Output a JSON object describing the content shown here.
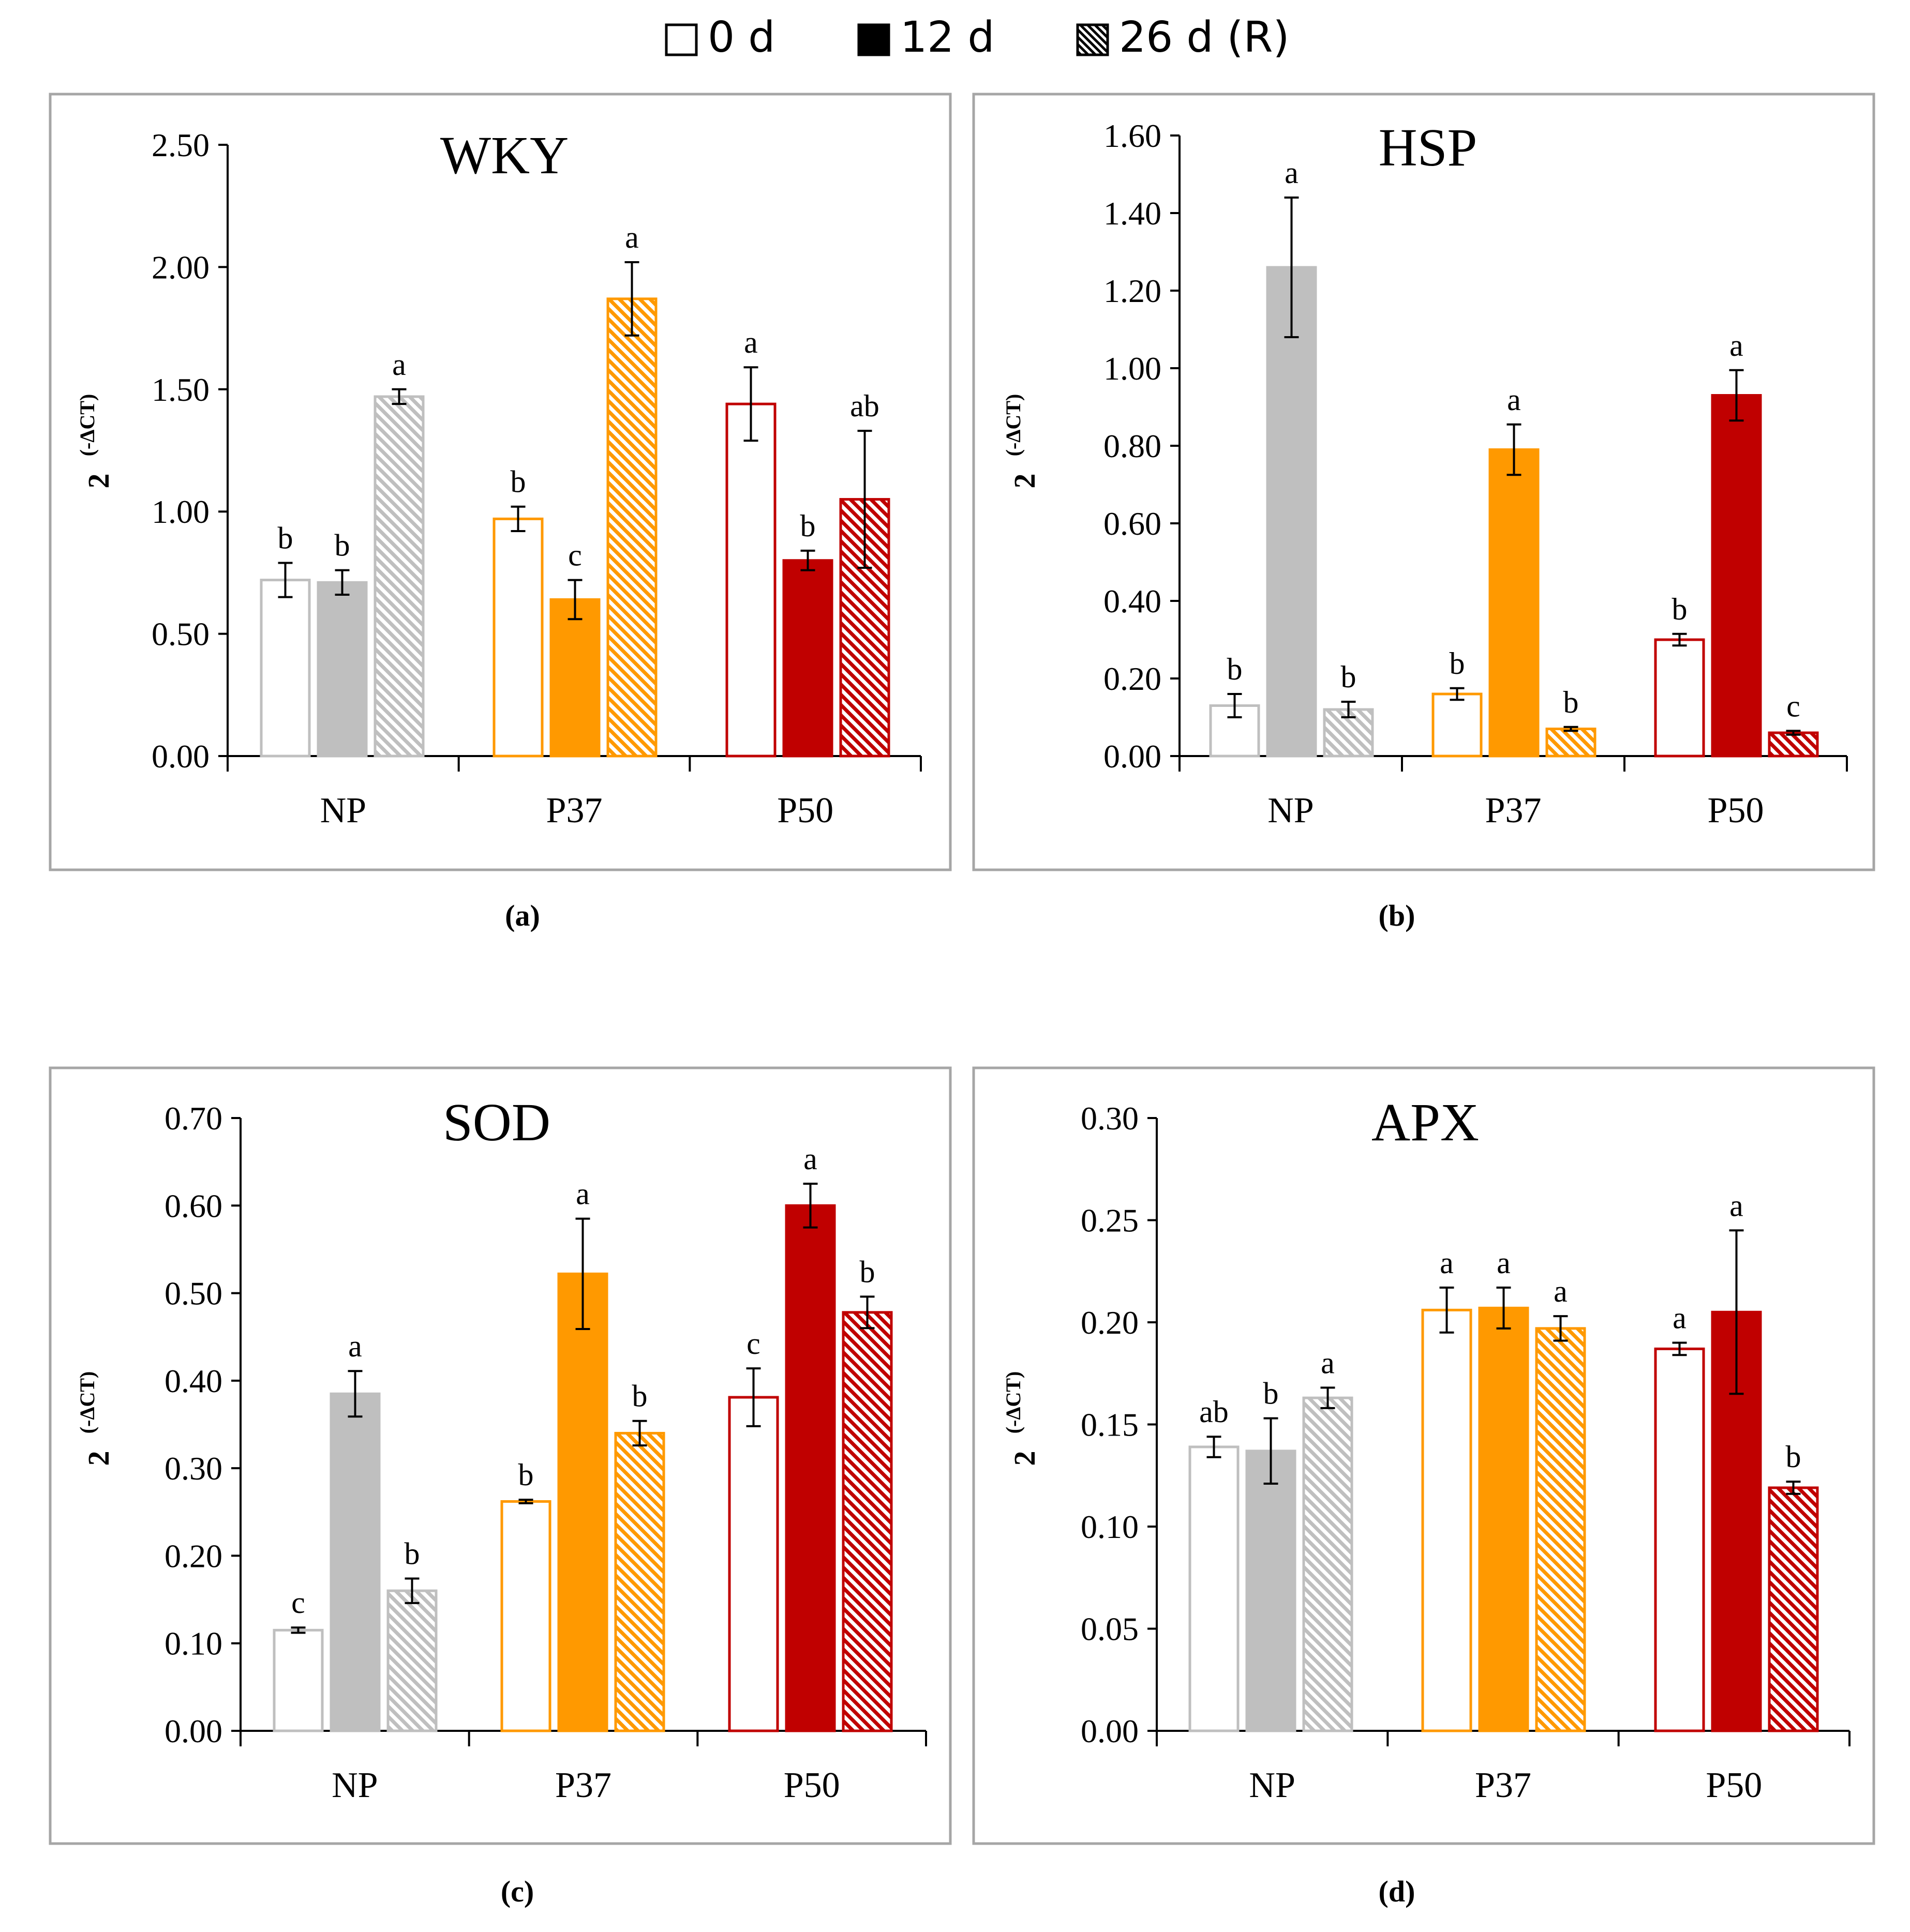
{
  "legend": [
    {
      "label": "0 d",
      "style": "open"
    },
    {
      "label": "12 d",
      "style": "filled"
    },
    {
      "label": "26 d (R)",
      "style": "hatched"
    }
  ],
  "colors": {
    "NP": "#bfbfbf",
    "P37": "#ff9900",
    "P50": "#c00000",
    "frame": "#a6a6a6",
    "axis": "#000000"
  },
  "chart_data": [
    {
      "type": "bar",
      "panel": "(a)",
      "title": "WKY",
      "ylabel_base": "2",
      "ylabel_exp": "(-ΔCT)",
      "ylim": [
        0,
        2.5
      ],
      "yticks": [
        "0.00",
        "0.50",
        "1.00",
        "1.50",
        "2.00",
        "2.50"
      ],
      "categories": [
        "NP",
        "P37",
        "P50"
      ],
      "series": [
        {
          "name": "0 d",
          "values": [
            0.72,
            0.97,
            1.44
          ],
          "errors": [
            0.07,
            0.05,
            0.15
          ],
          "letters": [
            "b",
            "b",
            "a"
          ]
        },
        {
          "name": "12 d",
          "values": [
            0.71,
            0.64,
            0.8
          ],
          "errors": [
            0.05,
            0.08,
            0.04
          ],
          "letters": [
            "b",
            "c",
            "b"
          ]
        },
        {
          "name": "26 d (R)",
          "values": [
            1.47,
            1.87,
            1.05
          ],
          "errors": [
            0.03,
            0.15,
            0.28
          ],
          "letters": [
            "a",
            "a",
            "ab"
          ]
        }
      ]
    },
    {
      "type": "bar",
      "panel": "(b)",
      "title": "HSP",
      "ylabel_base": "2",
      "ylabel_exp": "(-ΔCT)",
      "ylim": [
        0,
        1.6
      ],
      "yticks": [
        "0.00",
        "0.20",
        "0.40",
        "0.60",
        "0.80",
        "1.00",
        "1.20",
        "1.40",
        "1.60"
      ],
      "categories": [
        "NP",
        "P37",
        "P50"
      ],
      "series": [
        {
          "name": "0 d",
          "values": [
            0.13,
            0.16,
            0.3
          ],
          "errors": [
            0.03,
            0.015,
            0.015
          ],
          "letters": [
            "b",
            "b",
            "b"
          ]
        },
        {
          "name": "12 d",
          "values": [
            1.26,
            0.79,
            0.93
          ],
          "errors": [
            0.18,
            0.065,
            0.065
          ],
          "letters": [
            "a",
            "a",
            "a"
          ]
        },
        {
          "name": "26 d (R)",
          "values": [
            0.12,
            0.07,
            0.06
          ],
          "errors": [
            0.02,
            0.005,
            0.005
          ],
          "letters": [
            "b",
            "b",
            "c"
          ]
        }
      ]
    },
    {
      "type": "bar",
      "panel": "(c)",
      "title": "SOD",
      "ylabel_base": "2",
      "ylabel_exp": "(-ΔCT)",
      "ylim": [
        0,
        0.7
      ],
      "yticks": [
        "0.00",
        "0.10",
        "0.20",
        "0.30",
        "0.40",
        "0.50",
        "0.60",
        "0.70"
      ],
      "categories": [
        "NP",
        "P37",
        "P50"
      ],
      "series": [
        {
          "name": "0 d",
          "values": [
            0.115,
            0.262,
            0.381
          ],
          "errors": [
            0.003,
            0.002,
            0.033
          ],
          "letters": [
            "c",
            "b",
            "c"
          ]
        },
        {
          "name": "12 d",
          "values": [
            0.385,
            0.522,
            0.6
          ],
          "errors": [
            0.026,
            0.063,
            0.025
          ],
          "letters": [
            "a",
            "a",
            "a"
          ]
        },
        {
          "name": "26 d (R)",
          "values": [
            0.16,
            0.34,
            0.478
          ],
          "errors": [
            0.014,
            0.014,
            0.018
          ],
          "letters": [
            "b",
            "b",
            "b"
          ]
        }
      ]
    },
    {
      "type": "bar",
      "panel": "(d)",
      "title": "APX",
      "ylabel_base": "2",
      "ylabel_exp": "(-ΔCT)",
      "ylim": [
        0,
        0.3
      ],
      "yticks": [
        "0.00",
        "0.05",
        "0.10",
        "0.15",
        "0.20",
        "0.25",
        "0.30"
      ],
      "categories": [
        "NP",
        "P37",
        "P50"
      ],
      "series": [
        {
          "name": "0 d",
          "values": [
            0.139,
            0.206,
            0.187
          ],
          "errors": [
            0.005,
            0.011,
            0.003
          ],
          "letters": [
            "ab",
            "a",
            "a"
          ]
        },
        {
          "name": "12 d",
          "values": [
            0.137,
            0.207,
            0.205
          ],
          "errors": [
            0.016,
            0.01,
            0.04
          ],
          "letters": [
            "b",
            "a",
            "a"
          ]
        },
        {
          "name": "26 d (R)",
          "values": [
            0.163,
            0.197,
            0.119
          ],
          "errors": [
            0.005,
            0.006,
            0.003
          ],
          "letters": [
            "a",
            "a",
            "b"
          ]
        }
      ]
    }
  ]
}
